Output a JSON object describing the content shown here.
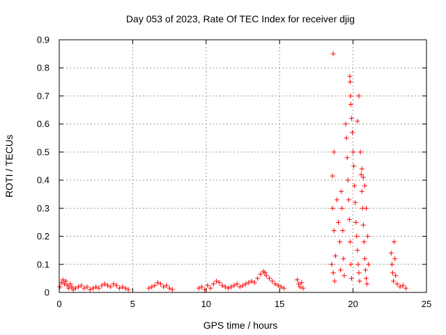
{
  "chart_data": {
    "type": "scatter",
    "title": "Day 053 of 2023, Rate Of TEC Index for receiver djig",
    "xlabel": "GPS time / hours",
    "ylabel": "ROTI / TECUs",
    "xlim": [
      0,
      25
    ],
    "ylim": [
      0,
      0.9
    ],
    "xticks": [
      0,
      5,
      10,
      15,
      20,
      25
    ],
    "yticks": [
      0,
      0.1,
      0.2,
      0.3,
      0.4,
      0.5,
      0.6,
      0.7,
      0.8,
      0.9
    ],
    "grid": true,
    "marker": "+",
    "colors": {
      "points": "#ff0000",
      "grid": "#999999",
      "frame": "#000000"
    },
    "series": [
      {
        "values": [
          {
            "x": 0.05,
            "y": 0.02
          },
          {
            "x": 0.15,
            "y": 0.035
          },
          {
            "x": 0.25,
            "y": 0.045
          },
          {
            "x": 0.35,
            "y": 0.03
          },
          {
            "x": 0.45,
            "y": 0.04
          },
          {
            "x": 0.55,
            "y": 0.025
          },
          {
            "x": 0.65,
            "y": 0.015
          },
          {
            "x": 0.75,
            "y": 0.03
          },
          {
            "x": 0.85,
            "y": 0.02
          },
          {
            "x": 0.95,
            "y": 0.01
          },
          {
            "x": 1.1,
            "y": 0.015
          },
          {
            "x": 1.3,
            "y": 0.02
          },
          {
            "x": 1.5,
            "y": 0.025
          },
          {
            "x": 1.7,
            "y": 0.015
          },
          {
            "x": 1.9,
            "y": 0.02
          },
          {
            "x": 2.1,
            "y": 0.01
          },
          {
            "x": 2.3,
            "y": 0.015
          },
          {
            "x": 2.5,
            "y": 0.02
          },
          {
            "x": 2.7,
            "y": 0.015
          },
          {
            "x": 2.9,
            "y": 0.025
          },
          {
            "x": 3.1,
            "y": 0.03
          },
          {
            "x": 3.3,
            "y": 0.025
          },
          {
            "x": 3.5,
            "y": 0.02
          },
          {
            "x": 3.7,
            "y": 0.03
          },
          {
            "x": 3.9,
            "y": 0.025
          },
          {
            "x": 4.1,
            "y": 0.015
          },
          {
            "x": 4.3,
            "y": 0.02
          },
          {
            "x": 4.5,
            "y": 0.015
          },
          {
            "x": 4.7,
            "y": 0.01
          },
          {
            "x": 6.1,
            "y": 0.015
          },
          {
            "x": 6.3,
            "y": 0.02
          },
          {
            "x": 6.5,
            "y": 0.025
          },
          {
            "x": 6.7,
            "y": 0.035
          },
          {
            "x": 6.9,
            "y": 0.03
          },
          {
            "x": 7.1,
            "y": 0.02
          },
          {
            "x": 7.3,
            "y": 0.025
          },
          {
            "x": 7.5,
            "y": 0.015
          },
          {
            "x": 7.7,
            "y": 0.01
          },
          {
            "x": 9.5,
            "y": 0.015
          },
          {
            "x": 9.7,
            "y": 0.02
          },
          {
            "x": 9.9,
            "y": 0.01
          },
          {
            "x": 10.1,
            "y": 0.025
          },
          {
            "x": 10.3,
            "y": 0.015
          },
          {
            "x": 10.5,
            "y": 0.03
          },
          {
            "x": 10.7,
            "y": 0.04
          },
          {
            "x": 10.9,
            "y": 0.035
          },
          {
            "x": 11.1,
            "y": 0.025
          },
          {
            "x": 11.3,
            "y": 0.02
          },
          {
            "x": 11.5,
            "y": 0.015
          },
          {
            "x": 11.7,
            "y": 0.02
          },
          {
            "x": 11.9,
            "y": 0.025
          },
          {
            "x": 12.1,
            "y": 0.03
          },
          {
            "x": 12.3,
            "y": 0.02
          },
          {
            "x": 12.5,
            "y": 0.025
          },
          {
            "x": 12.7,
            "y": 0.03
          },
          {
            "x": 12.9,
            "y": 0.035
          },
          {
            "x": 13.1,
            "y": 0.04
          },
          {
            "x": 13.3,
            "y": 0.035
          },
          {
            "x": 13.5,
            "y": 0.05
          },
          {
            "x": 13.7,
            "y": 0.065
          },
          {
            "x": 13.9,
            "y": 0.075
          },
          {
            "x": 14.0,
            "y": 0.07
          },
          {
            "x": 14.1,
            "y": 0.06
          },
          {
            "x": 14.3,
            "y": 0.05
          },
          {
            "x": 14.5,
            "y": 0.04
          },
          {
            "x": 14.7,
            "y": 0.03
          },
          {
            "x": 14.9,
            "y": 0.025
          },
          {
            "x": 15.1,
            "y": 0.02
          },
          {
            "x": 15.3,
            "y": 0.015
          },
          {
            "x": 16.2,
            "y": 0.045
          },
          {
            "x": 16.3,
            "y": 0.03
          },
          {
            "x": 16.4,
            "y": 0.02
          },
          {
            "x": 16.5,
            "y": 0.035
          },
          {
            "x": 16.6,
            "y": 0.015
          },
          {
            "x": 18.65,
            "y": 0.85
          },
          {
            "x": 18.6,
            "y": 0.415
          },
          {
            "x": 18.7,
            "y": 0.5
          },
          {
            "x": 18.6,
            "y": 0.3
          },
          {
            "x": 18.7,
            "y": 0.22
          },
          {
            "x": 18.55,
            "y": 0.1
          },
          {
            "x": 18.65,
            "y": 0.07
          },
          {
            "x": 18.75,
            "y": 0.04
          },
          {
            "x": 18.8,
            "y": 0.13
          },
          {
            "x": 18.9,
            "y": 0.33
          },
          {
            "x": 19.0,
            "y": 0.25
          },
          {
            "x": 19.1,
            "y": 0.18
          },
          {
            "x": 19.15,
            "y": 0.08
          },
          {
            "x": 19.2,
            "y": 0.36
          },
          {
            "x": 19.25,
            "y": 0.3
          },
          {
            "x": 19.3,
            "y": 0.22
          },
          {
            "x": 19.35,
            "y": 0.12
          },
          {
            "x": 19.4,
            "y": 0.06
          },
          {
            "x": 19.5,
            "y": 0.6
          },
          {
            "x": 19.55,
            "y": 0.55
          },
          {
            "x": 19.6,
            "y": 0.48
          },
          {
            "x": 19.65,
            "y": 0.4
          },
          {
            "x": 19.7,
            "y": 0.33
          },
          {
            "x": 19.75,
            "y": 0.26
          },
          {
            "x": 19.8,
            "y": 0.18
          },
          {
            "x": 19.85,
            "y": 0.1
          },
          {
            "x": 19.9,
            "y": 0.05
          },
          {
            "x": 19.78,
            "y": 0.77
          },
          {
            "x": 19.8,
            "y": 0.75
          },
          {
            "x": 19.83,
            "y": 0.7
          },
          {
            "x": 19.85,
            "y": 0.67
          },
          {
            "x": 19.9,
            "y": 0.62
          },
          {
            "x": 19.95,
            "y": 0.57
          },
          {
            "x": 20.0,
            "y": 0.5
          },
          {
            "x": 20.05,
            "y": 0.45
          },
          {
            "x": 20.1,
            "y": 0.38
          },
          {
            "x": 20.15,
            "y": 0.32
          },
          {
            "x": 20.2,
            "y": 0.25
          },
          {
            "x": 20.25,
            "y": 0.2
          },
          {
            "x": 20.3,
            "y": 0.15
          },
          {
            "x": 20.35,
            "y": 0.1
          },
          {
            "x": 20.4,
            "y": 0.07
          },
          {
            "x": 20.45,
            "y": 0.04
          },
          {
            "x": 20.4,
            "y": 0.7
          },
          {
            "x": 20.3,
            "y": 0.61
          },
          {
            "x": 20.5,
            "y": 0.5
          },
          {
            "x": 20.55,
            "y": 0.42
          },
          {
            "x": 20.6,
            "y": 0.36
          },
          {
            "x": 20.65,
            "y": 0.3
          },
          {
            "x": 20.7,
            "y": 0.24
          },
          {
            "x": 20.75,
            "y": 0.18
          },
          {
            "x": 20.8,
            "y": 0.12
          },
          {
            "x": 20.85,
            "y": 0.08
          },
          {
            "x": 20.9,
            "y": 0.05
          },
          {
            "x": 20.95,
            "y": 0.03
          },
          {
            "x": 20.6,
            "y": 0.44
          },
          {
            "x": 20.7,
            "y": 0.41
          },
          {
            "x": 20.8,
            "y": 0.38
          },
          {
            "x": 20.9,
            "y": 0.3
          },
          {
            "x": 21.0,
            "y": 0.2
          },
          {
            "x": 21.05,
            "y": 0.1
          },
          {
            "x": 22.6,
            "y": 0.14
          },
          {
            "x": 22.65,
            "y": 0.1
          },
          {
            "x": 22.7,
            "y": 0.07
          },
          {
            "x": 22.75,
            "y": 0.04
          },
          {
            "x": 22.8,
            "y": 0.18
          },
          {
            "x": 22.85,
            "y": 0.12
          },
          {
            "x": 22.9,
            "y": 0.06
          },
          {
            "x": 23.0,
            "y": 0.03
          },
          {
            "x": 23.2,
            "y": 0.02
          },
          {
            "x": 23.4,
            "y": 0.025
          },
          {
            "x": 23.6,
            "y": 0.015
          }
        ]
      }
    ]
  }
}
